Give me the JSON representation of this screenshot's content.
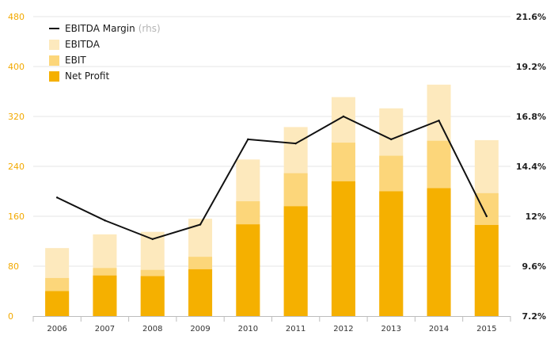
{
  "chart_data": {
    "type": "bar",
    "title": "",
    "categories": [
      "2006",
      "2007",
      "2008",
      "2009",
      "2010",
      "2011",
      "2012",
      "2013",
      "2014",
      "2015"
    ],
    "series": [
      {
        "name": "Net Profit",
        "kind": "bar",
        "axis": "left",
        "color": "#f5b000",
        "values": [
          40,
          65,
          64,
          75,
          147,
          176,
          216,
          200,
          205,
          146
        ]
      },
      {
        "name": "EBIT",
        "kind": "bar",
        "axis": "left",
        "color": "#fcd67a",
        "values": [
          61,
          77,
          74,
          95,
          184,
          229,
          278,
          257,
          281,
          197
        ]
      },
      {
        "name": "EBITDA",
        "kind": "bar",
        "axis": "left",
        "color": "#fde9bd",
        "values": [
          109,
          131,
          135,
          156,
          251,
          303,
          351,
          333,
          371,
          282
        ]
      },
      {
        "name": "EBITDA Margin",
        "note": "(rhs)",
        "kind": "line",
        "axis": "right",
        "color": "#111111",
        "values": [
          12.9,
          11.8,
          10.9,
          11.6,
          15.7,
          15.5,
          16.8,
          15.7,
          16.6,
          12.0
        ]
      }
    ],
    "left_axis": {
      "min": 0,
      "max": 480,
      "ticks": [
        "0",
        "80",
        "160",
        "240",
        "320",
        "400",
        "480"
      ],
      "tick_values": [
        0,
        80,
        160,
        240,
        320,
        400,
        480
      ]
    },
    "right_axis": {
      "min": 7.2,
      "max": 21.6,
      "ticks": [
        "7.2%",
        "9.6%",
        "12%",
        "14.4%",
        "16.8%",
        "19.2%",
        "21.6%"
      ],
      "tick_values": [
        7.2,
        9.6,
        12,
        14.4,
        16.8,
        19.2,
        21.6
      ]
    },
    "legend": {
      "placement": "top-left",
      "items": [
        {
          "label": "EBITDA Margin",
          "note": "(rhs)",
          "symbol": "line",
          "color": "#111111"
        },
        {
          "label": "EBITDA",
          "symbol": "box",
          "color": "#fde9bd"
        },
        {
          "label": "EBIT",
          "symbol": "box",
          "color": "#fcd67a"
        },
        {
          "label": "Net Profit",
          "symbol": "box",
          "color": "#f5b000"
        }
      ]
    },
    "grid": true
  }
}
